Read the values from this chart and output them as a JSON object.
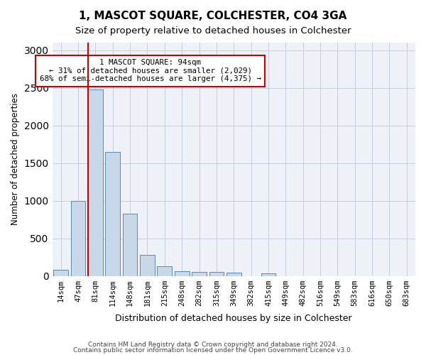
{
  "title": "1, MASCOT SQUARE, COLCHESTER, CO4 3GA",
  "subtitle": "Size of property relative to detached houses in Colchester",
  "xlabel": "Distribution of detached houses by size in Colchester",
  "ylabel": "Number of detached properties",
  "bar_color": "#c8d8e8",
  "bar_edge_color": "#5a8ab0",
  "categories": [
    "14sqm",
    "47sqm",
    "81sqm",
    "114sqm",
    "148sqm",
    "181sqm",
    "215sqm",
    "248sqm",
    "282sqm",
    "315sqm",
    "349sqm",
    "382sqm",
    "415sqm",
    "449sqm",
    "482sqm",
    "516sqm",
    "549sqm",
    "583sqm",
    "616sqm",
    "650sqm",
    "683sqm"
  ],
  "values": [
    80,
    1000,
    2480,
    1650,
    830,
    280,
    130,
    60,
    50,
    50,
    40,
    0,
    30,
    0,
    0,
    0,
    0,
    0,
    0,
    0,
    0
  ],
  "vline_x": 2,
  "vline_color": "#cc0000",
  "annotation_text": "1 MASCOT SQUARE: 94sqm\n← 31% of detached houses are smaller (2,029)\n68% of semi-detached houses are larger (4,375) →",
  "annotation_box_color": "#ffffff",
  "annotation_box_edge": "#cc0000",
  "ylim": [
    0,
    3100
  ],
  "yticks": [
    0,
    500,
    1000,
    1500,
    2000,
    2500,
    3000
  ],
  "footer1": "Contains HM Land Registry data © Crown copyright and database right 2024.",
  "footer2": "Contains public sector information licensed under the Open Government Licence v3.0.",
  "bg_color": "#eef2f8",
  "plot_bg_color": "#ffffff"
}
